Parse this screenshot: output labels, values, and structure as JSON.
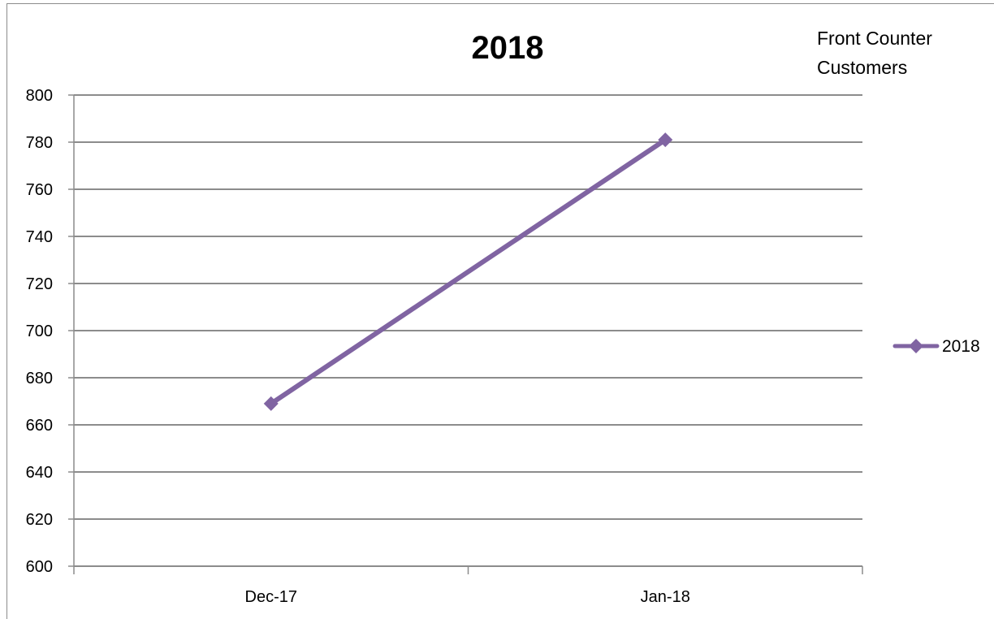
{
  "chart_data": {
    "type": "line",
    "title": "2018",
    "annotation": [
      "Front Counter",
      "Customers"
    ],
    "categories": [
      "Dec-17",
      "Jan-18"
    ],
    "series": [
      {
        "name": "2018",
        "values": [
          669,
          781
        ],
        "color": "#8064a2",
        "marker": "diamond"
      }
    ],
    "ylim": [
      600,
      800
    ],
    "yticks": [
      600,
      620,
      640,
      660,
      680,
      700,
      720,
      740,
      760,
      780,
      800
    ],
    "grid": true,
    "legend": "right"
  }
}
